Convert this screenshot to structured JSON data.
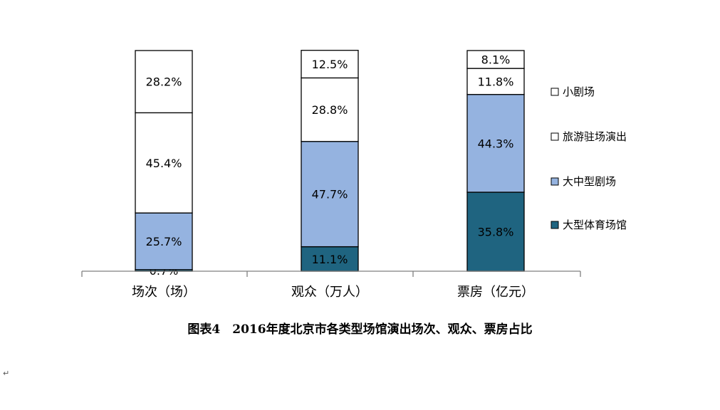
{
  "chart_data": {
    "type": "bar",
    "stacked": true,
    "percent": true,
    "categories": [
      "场次（场）",
      "观众（万人）",
      "票房（亿元）"
    ],
    "series": [
      {
        "name": "大型体育场馆",
        "values": [
          0.7,
          11.1,
          35.8
        ],
        "color": "#1F6480"
      },
      {
        "name": "大中型剧场",
        "values": [
          25.7,
          47.7,
          44.3
        ],
        "color": "#95B3E0"
      },
      {
        "name": "旅游驻场演出",
        "values": [
          45.4,
          28.8,
          11.8
        ],
        "color": "#FFFFFF"
      },
      {
        "name": "小剧场",
        "values": [
          28.2,
          12.5,
          8.1
        ],
        "color": "#FFFFFF"
      }
    ],
    "data_labels": [
      [
        "0.7%",
        "25.7%",
        "45.4%",
        "28.2%"
      ],
      [
        "11.1%",
        "47.7%",
        "28.8%",
        "12.5%"
      ],
      [
        "35.8%",
        "44.3%",
        "11.8%",
        "8.1%"
      ]
    ],
    "legend_order": [
      "小剧场",
      "旅游驻场演出",
      "大中型剧场",
      "大型体育场馆"
    ],
    "legend_position": "right",
    "ylim": [
      0,
      100
    ],
    "grid": false
  },
  "caption": "图表4　2016年度北京市各类型场馆演出场次、观众、票房占比",
  "paragraph_mark": "↵"
}
